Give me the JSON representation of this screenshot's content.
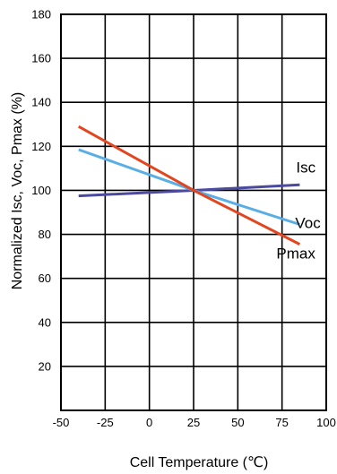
{
  "chart_data": {
    "type": "line",
    "title": "",
    "xlabel": "Cell Temperature (℃)",
    "ylabel": "Normalized Isc, Voc, Pmax (%)",
    "xlim": [
      -50,
      100
    ],
    "ylim": [
      0,
      180
    ],
    "xticks": [
      -50,
      -25,
      0,
      25,
      50,
      75,
      100
    ],
    "yticks": [
      20,
      40,
      60,
      80,
      100,
      120,
      140,
      160,
      180
    ],
    "xtick_labels": [
      "-50",
      "-25",
      "0",
      "25",
      "50",
      "75",
      "100"
    ],
    "ytick_labels": [
      "20",
      "40",
      "60",
      "80",
      "100",
      "120",
      "140",
      "160",
      "180"
    ],
    "grid": true,
    "legend": "none (series labels placed beside line ends)",
    "series": [
      {
        "name": "Isc",
        "color": "#4b4a9e",
        "x": [
          -40,
          25,
          85
        ],
        "y": [
          97.5,
          100,
          102.5
        ]
      },
      {
        "name": "Voc",
        "color": "#5aaee6",
        "x": [
          -40,
          25,
          85
        ],
        "y": [
          118.5,
          100,
          84.5
        ]
      },
      {
        "name": "Pmax",
        "color": "#e3451e",
        "x": [
          -40,
          25,
          85
        ],
        "y": [
          129,
          100,
          75.5
        ]
      }
    ]
  }
}
